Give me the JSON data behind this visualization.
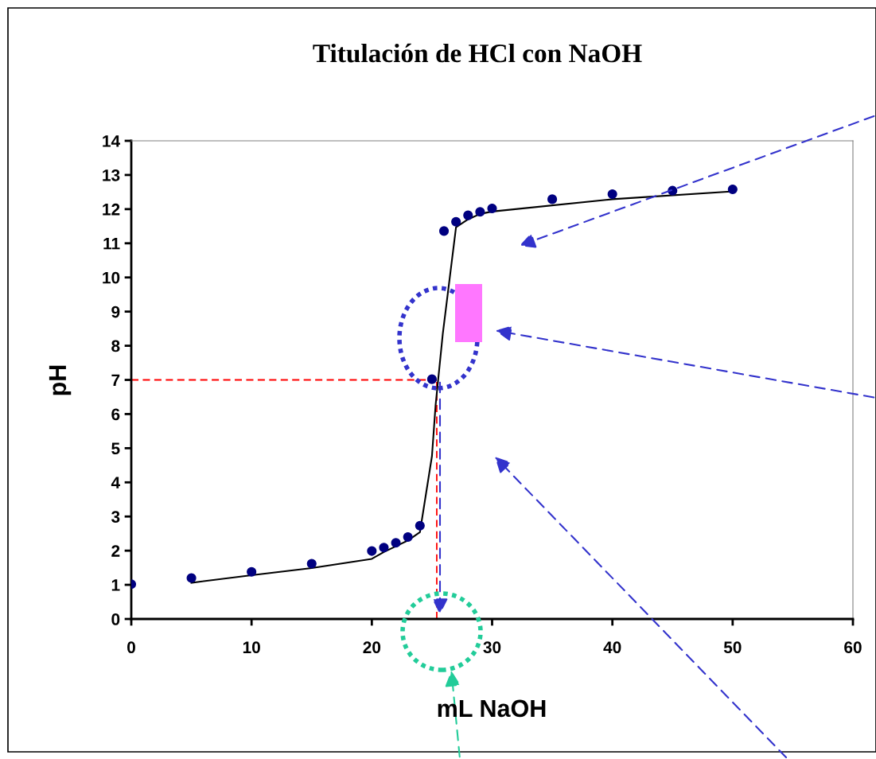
{
  "chart_data": {
    "type": "scatter",
    "title": "Titulación de HCl con NaOH",
    "xlabel": "mL NaOH",
    "ylabel": "pH",
    "xlim": [
      0,
      60
    ],
    "xticks": [
      0,
      10,
      20,
      30,
      40,
      50,
      60
    ],
    "ylim": [
      0,
      14
    ],
    "yticks": [
      0,
      1,
      2,
      3,
      4,
      5,
      6,
      7,
      8,
      9,
      10,
      11,
      12,
      13,
      14
    ],
    "grid": false,
    "legend": false,
    "series": [
      {
        "color": "#000080",
        "marker": "circle",
        "x": [
          0,
          5,
          10,
          15,
          20,
          21,
          22,
          23,
          24,
          25,
          26,
          27,
          28,
          29,
          30,
          35,
          40,
          45,
          50
        ],
        "values": [
          1.02,
          1.2,
          1.38,
          1.62,
          1.99,
          2.09,
          2.23,
          2.4,
          2.73,
          7.02,
          11.36,
          11.63,
          11.82,
          11.92,
          12.02,
          12.29,
          12.44,
          12.54,
          12.58
        ]
      },
      {
        "type": "line",
        "color": "#000000",
        "marker": "none",
        "line_style": "solid",
        "x": [
          5,
          10,
          15,
          20,
          21,
          23,
          24,
          25,
          25.3,
          25.9,
          27,
          28,
          29,
          30,
          40,
          50
        ],
        "values": [
          1.06,
          1.28,
          1.49,
          1.76,
          1.96,
          2.3,
          2.54,
          4.77,
          6.25,
          8.35,
          11.47,
          11.7,
          11.86,
          11.93,
          12.29,
          12.52
        ]
      }
    ],
    "ref_lines": [
      {
        "axis": "y",
        "value": 7,
        "color": "#ff0000",
        "line_style": "dashed"
      },
      {
        "axis": "x",
        "value": 25.4,
        "color": "#ff0000",
        "line_style": "dashed"
      }
    ]
  }
}
